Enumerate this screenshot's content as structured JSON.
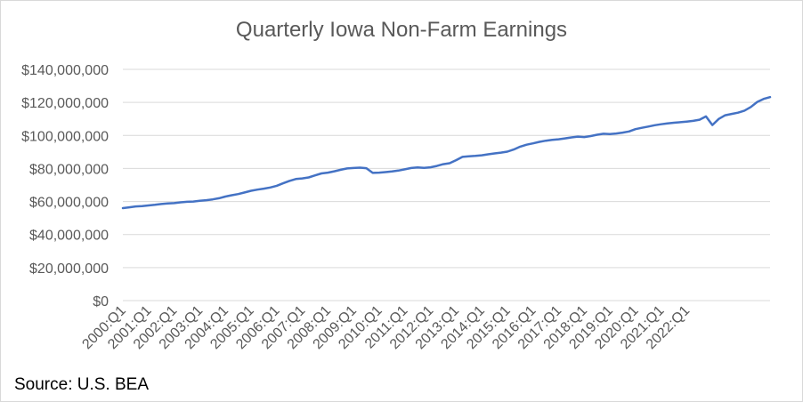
{
  "chart_data": {
    "type": "line",
    "title": "Quarterly Iowa Non-Farm Earnings",
    "source": "Source: U.S. BEA",
    "xlabel": "",
    "ylabel": "",
    "ylim": [
      0,
      140000000
    ],
    "yticks": [
      "$0",
      "$20,000,000",
      "$40,000,000",
      "$60,000,000",
      "$80,000,000",
      "$100,000,000",
      "$120,000,000",
      "$140,000,000"
    ],
    "ytick_values": [
      0,
      20000000,
      40000000,
      60000000,
      80000000,
      100000000,
      120000000,
      140000000
    ],
    "xticks": [
      "2000:Q1",
      "2001:Q1",
      "2002:Q1",
      "2003:Q1",
      "2004:Q1",
      "2005:Q1",
      "2006:Q1",
      "2007:Q1",
      "2008:Q1",
      "2009:Q1",
      "2010:Q1",
      "2011:Q1",
      "2012:Q1",
      "2013:Q1",
      "2014:Q1",
      "2015:Q1",
      "2016:Q1",
      "2017:Q1",
      "2018:Q1",
      "2019:Q1",
      "2020:Q1",
      "2021:Q1",
      "2022:Q1"
    ],
    "grid": true,
    "legend": "none",
    "colors": {
      "line": "#4472c4",
      "grid": "#d9d9d9",
      "tick_text": "#595959",
      "title": "#595959"
    },
    "series": [
      {
        "values": [
          56000000,
          56500000,
          57000000,
          57200000,
          57600000,
          58000000,
          58500000,
          58800000,
          59000000,
          59500000,
          59800000,
          60000000,
          60400000,
          60800000,
          61300000,
          62000000,
          63000000,
          63800000,
          64500000,
          65500000,
          66500000,
          67200000,
          67800000,
          68500000,
          69500000,
          71000000,
          72500000,
          73600000,
          74000000,
          74600000,
          75800000,
          77000000,
          77500000,
          78300000,
          79200000,
          80000000,
          80300000,
          80500000,
          80200000,
          77300000,
          77500000,
          77800000,
          78200000,
          78700000,
          79500000,
          80300000,
          80600000,
          80400000,
          80700000,
          81500000,
          82600000,
          83200000,
          85000000,
          87000000,
          87400000,
          87600000,
          88000000,
          88600000,
          89100000,
          89600000,
          90200000,
          91500000,
          93200000,
          94400000,
          95200000,
          96100000,
          96800000,
          97300000,
          97700000,
          98200000,
          98800000,
          99300000,
          99000000,
          99600000,
          100400000,
          101000000,
          100800000,
          101200000,
          101700000,
          102400000,
          103800000,
          104600000,
          105400000,
          106200000,
          106800000,
          107300000,
          107700000,
          108000000,
          108400000,
          108800000,
          109500000,
          111500000,
          106300000,
          110000000,
          112200000,
          113000000,
          113800000,
          115000000,
          117200000,
          120300000,
          122100000,
          123200000
        ]
      }
    ]
  }
}
